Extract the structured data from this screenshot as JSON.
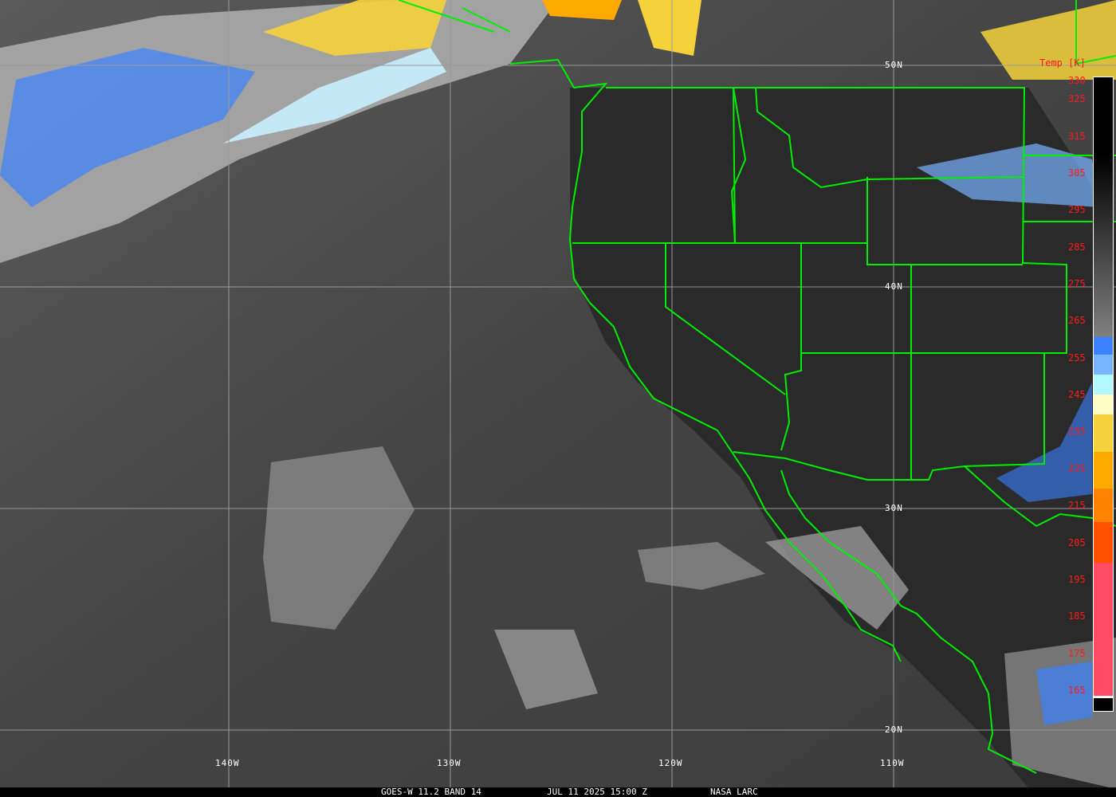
{
  "map": {
    "product": "GOES-W 11.2 BAND 14",
    "datetime": "JUL 11 2025 15:00 Z",
    "source": "NASA LARC",
    "latitude_labels": [
      "50N",
      "40N",
      "30N",
      "20N"
    ],
    "longitude_labels": [
      "140W",
      "130W",
      "120W",
      "110W"
    ],
    "boundary_color": "#00ee00",
    "grid_color": "#9a9a9a"
  },
  "colorbar": {
    "title": "Temp [K]",
    "ticks": [
      "330",
      "325",
      "315",
      "305",
      "295",
      "285",
      "275",
      "265",
      "255",
      "245",
      "235",
      "225",
      "215",
      "205",
      "195",
      "185",
      "175",
      "165"
    ],
    "colors": [
      "#000000",
      "#808080",
      "#3c82ff",
      "#78b4ff",
      "#b4f8ff",
      "#fffcc8",
      "#f5d23c",
      "#ffaa00",
      "#ff8200",
      "#ff5000",
      "#ff4b64"
    ]
  }
}
